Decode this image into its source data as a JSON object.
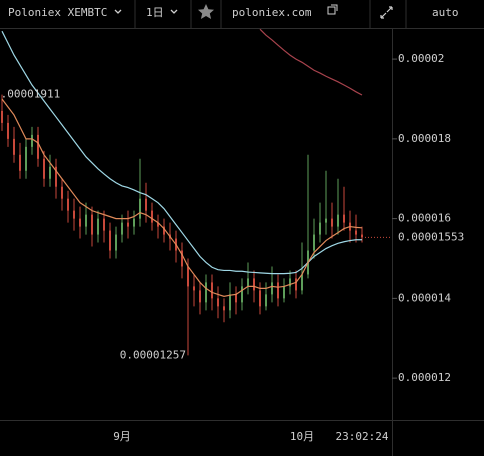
{
  "toolbar": {
    "symbol": "Poloniex XEMBTC",
    "interval": "1日",
    "site": "poloniex.com",
    "scale": "auto"
  },
  "chart_data": {
    "type": "candlestick",
    "categories": [
      null,
      null,
      null,
      null,
      null,
      null,
      null,
      null,
      null,
      null,
      null,
      null,
      null,
      null,
      null,
      null,
      null,
      null,
      null,
      null,
      "9月",
      null,
      null,
      null,
      null,
      null,
      null,
      null,
      null,
      null,
      null,
      null,
      null,
      null,
      null,
      null,
      null,
      null,
      null,
      null,
      null,
      null,
      null,
      null,
      null,
      null,
      null,
      null,
      null,
      null,
      "10月",
      null,
      null,
      null,
      null,
      null,
      null,
      null,
      null,
      null,
      null
    ],
    "open": [
      1.87e-05,
      1.84e-05,
      1.8e-05,
      1.76e-05,
      1.72e-05,
      1.78e-05,
      1.81e-05,
      1.75e-05,
      1.7e-05,
      1.73e-05,
      1.68e-05,
      1.65e-05,
      1.62e-05,
      1.6e-05,
      1.58e-05,
      1.61e-05,
      1.56e-05,
      1.6e-05,
      1.57e-05,
      1.52e-05,
      1.56e-05,
      1.59e-05,
      1.58e-05,
      1.6e-05,
      1.65e-05,
      1.62e-05,
      1.59e-05,
      1.58e-05,
      1.56e-05,
      1.55e-05,
      1.52e-05,
      1.48e-05,
      1.43e-05,
      1.42e-05,
      1.39e-05,
      1.44e-05,
      1.4e-05,
      1.38e-05,
      1.37e-05,
      1.41e-05,
      1.39e-05,
      1.43e-05,
      1.45e-05,
      1.42e-05,
      1.38e-05,
      1.41e-05,
      1.44e-05,
      1.4e-05,
      1.43e-05,
      1.45e-05,
      1.42e-05,
      1.46e-05,
      1.52e-05,
      1.56e-05,
      1.59e-05,
      1.6e-05,
      1.58e-05,
      1.61e-05,
      1.59e-05,
      1.57e-05,
      1.56e-05
    ],
    "high": [
      1.911e-05,
      1.86e-05,
      1.83e-05,
      1.79e-05,
      1.8e-05,
      1.83e-05,
      1.83e-05,
      1.77e-05,
      1.76e-05,
      1.75e-05,
      1.7e-05,
      1.67e-05,
      1.65e-05,
      1.63e-05,
      1.64e-05,
      1.63e-05,
      1.62e-05,
      1.62e-05,
      1.59e-05,
      1.58e-05,
      1.61e-05,
      1.62e-05,
      1.62e-05,
      1.75e-05,
      1.69e-05,
      1.64e-05,
      1.61e-05,
      1.6e-05,
      1.59e-05,
      1.57e-05,
      1.54e-05,
      1.5e-05,
      1.46e-05,
      1.44e-05,
      1.46e-05,
      1.46e-05,
      1.43e-05,
      1.4e-05,
      1.44e-05,
      1.43e-05,
      1.45e-05,
      1.49e-05,
      1.47e-05,
      1.44e-05,
      1.44e-05,
      1.48e-05,
      1.46e-05,
      1.45e-05,
      1.47e-05,
      1.47e-05,
      1.54e-05,
      1.76e-05,
      1.6e-05,
      1.64e-05,
      1.72e-05,
      1.64e-05,
      1.7e-05,
      1.68e-05,
      1.62e-05,
      1.61e-05,
      1.58e-05
    ],
    "low": [
      1.82e-05,
      1.78e-05,
      1.74e-05,
      1.7e-05,
      1.7e-05,
      1.76e-05,
      1.73e-05,
      1.68e-05,
      1.68e-05,
      1.65e-05,
      1.62e-05,
      1.59e-05,
      1.57e-05,
      1.55e-05,
      1.56e-05,
      1.53e-05,
      1.54e-05,
      1.54e-05,
      1.5e-05,
      1.5e-05,
      1.54e-05,
      1.55e-05,
      1.56e-05,
      1.58e-05,
      1.59e-05,
      1.57e-05,
      1.55e-05,
      1.54e-05,
      1.52e-05,
      1.49e-05,
      1.45e-05,
      1.257e-05,
      1.38e-05,
      1.36e-05,
      1.37e-05,
      1.37e-05,
      1.35e-05,
      1.34e-05,
      1.35e-05,
      1.36e-05,
      1.37e-05,
      1.41e-05,
      1.39e-05,
      1.36e-05,
      1.37e-05,
      1.39e-05,
      1.38e-05,
      1.39e-05,
      1.41e-05,
      1.4e-05,
      1.41e-05,
      1.45e-05,
      1.5e-05,
      1.54e-05,
      1.56e-05,
      1.55e-05,
      1.56e-05,
      1.57e-05,
      1.54e-05,
      1.54e-05,
      1.54e-05
    ],
    "close": [
      1.84e-05,
      1.8e-05,
      1.76e-05,
      1.72e-05,
      1.78e-05,
      1.81e-05,
      1.75e-05,
      1.7e-05,
      1.73e-05,
      1.68e-05,
      1.65e-05,
      1.62e-05,
      1.6e-05,
      1.58e-05,
      1.61e-05,
      1.56e-05,
      1.6e-05,
      1.57e-05,
      1.52e-05,
      1.56e-05,
      1.59e-05,
      1.58e-05,
      1.6e-05,
      1.65e-05,
      1.62e-05,
      1.59e-05,
      1.58e-05,
      1.56e-05,
      1.55e-05,
      1.52e-05,
      1.48e-05,
      1.43e-05,
      1.42e-05,
      1.39e-05,
      1.44e-05,
      1.4e-05,
      1.38e-05,
      1.37e-05,
      1.41e-05,
      1.39e-05,
      1.43e-05,
      1.45e-05,
      1.42e-05,
      1.38e-05,
      1.41e-05,
      1.44e-05,
      1.4e-05,
      1.43e-05,
      1.45e-05,
      1.42e-05,
      1.46e-05,
      1.52e-05,
      1.56e-05,
      1.59e-05,
      1.6e-05,
      1.58e-05,
      1.61e-05,
      1.59e-05,
      1.57e-05,
      1.56e-05,
      1.553e-05
    ],
    "up_color": "#5e9e5a",
    "down_color": "#c9493b",
    "series": [
      {
        "color": "#9fd8e6",
        "values": [
          2.07e-05,
          2.04e-05,
          2.01e-05,
          1.985e-05,
          1.96e-05,
          1.935e-05,
          1.915e-05,
          1.895e-05,
          1.875e-05,
          1.855e-05,
          1.835e-05,
          1.815e-05,
          1.795e-05,
          1.775e-05,
          1.755e-05,
          1.74e-05,
          1.725e-05,
          1.712e-05,
          1.7e-05,
          1.69e-05,
          1.682e-05,
          1.678e-05,
          1.672e-05,
          1.665e-05,
          1.66e-05,
          1.65e-05,
          1.64e-05,
          1.625e-05,
          1.605e-05,
          1.585e-05,
          1.565e-05,
          1.545e-05,
          1.525e-05,
          1.505e-05,
          1.49e-05,
          1.478e-05,
          1.472e-05,
          1.47e-05,
          1.47e-05,
          1.468e-05,
          1.468e-05,
          1.466e-05,
          1.465e-05,
          1.464e-05,
          1.463e-05,
          1.462e-05,
          1.462e-05,
          1.462e-05,
          1.463e-05,
          1.465e-05,
          1.475e-05,
          1.49e-05,
          1.505e-05,
          1.515e-05,
          1.525e-05,
          1.532e-05,
          1.538e-05,
          1.542e-05,
          1.545e-05,
          1.547e-05,
          1.547e-05
        ]
      },
      {
        "color": "#e08a5a",
        "values": [
          1.9e-05,
          1.88e-05,
          1.86e-05,
          1.83e-05,
          1.8e-05,
          1.8e-05,
          1.79e-05,
          1.76e-05,
          1.74e-05,
          1.72e-05,
          1.7e-05,
          1.68e-05,
          1.66e-05,
          1.64e-05,
          1.63e-05,
          1.62e-05,
          1.615e-05,
          1.61e-05,
          1.605e-05,
          1.6e-05,
          1.6e-05,
          1.6e-05,
          1.605e-05,
          1.615e-05,
          1.61e-05,
          1.6e-05,
          1.59e-05,
          1.575e-05,
          1.555e-05,
          1.535e-05,
          1.51e-05,
          1.48e-05,
          1.46e-05,
          1.44e-05,
          1.425e-05,
          1.415e-05,
          1.41e-05,
          1.405e-05,
          1.408e-05,
          1.41e-05,
          1.42e-05,
          1.43e-05,
          1.43e-05,
          1.425e-05,
          1.425e-05,
          1.43e-05,
          1.428e-05,
          1.43e-05,
          1.435e-05,
          1.44e-05,
          1.46e-05,
          1.49e-05,
          1.515e-05,
          1.53e-05,
          1.545e-05,
          1.555e-05,
          1.565e-05,
          1.575e-05,
          1.58e-05,
          1.578e-05,
          1.577e-05
        ]
      },
      {
        "color": "#a8434d",
        "values": [
          null,
          null,
          null,
          null,
          null,
          null,
          null,
          null,
          null,
          null,
          null,
          null,
          null,
          null,
          null,
          null,
          null,
          null,
          null,
          null,
          null,
          null,
          null,
          null,
          null,
          null,
          null,
          null,
          null,
          null,
          null,
          null,
          null,
          null,
          null,
          null,
          null,
          null,
          null,
          null,
          null,
          null,
          null,
          2.075e-05,
          2.06e-05,
          2.048e-05,
          2.035e-05,
          2.022e-05,
          2.01e-05,
          2e-05,
          1.992e-05,
          1.982e-05,
          1.972e-05,
          1.965e-05,
          1.957e-05,
          1.95e-05,
          1.943e-05,
          1.935e-05,
          1.927e-05,
          1.918e-05,
          1.91e-05
        ]
      }
    ],
    "ylim": [
      1.095e-05,
      2.078e-05
    ],
    "yticks": [
      1.2e-05,
      1.4e-05,
      1.6e-05,
      1.8e-05,
      2e-05
    ],
    "time_label": "23:02:24"
  }
}
